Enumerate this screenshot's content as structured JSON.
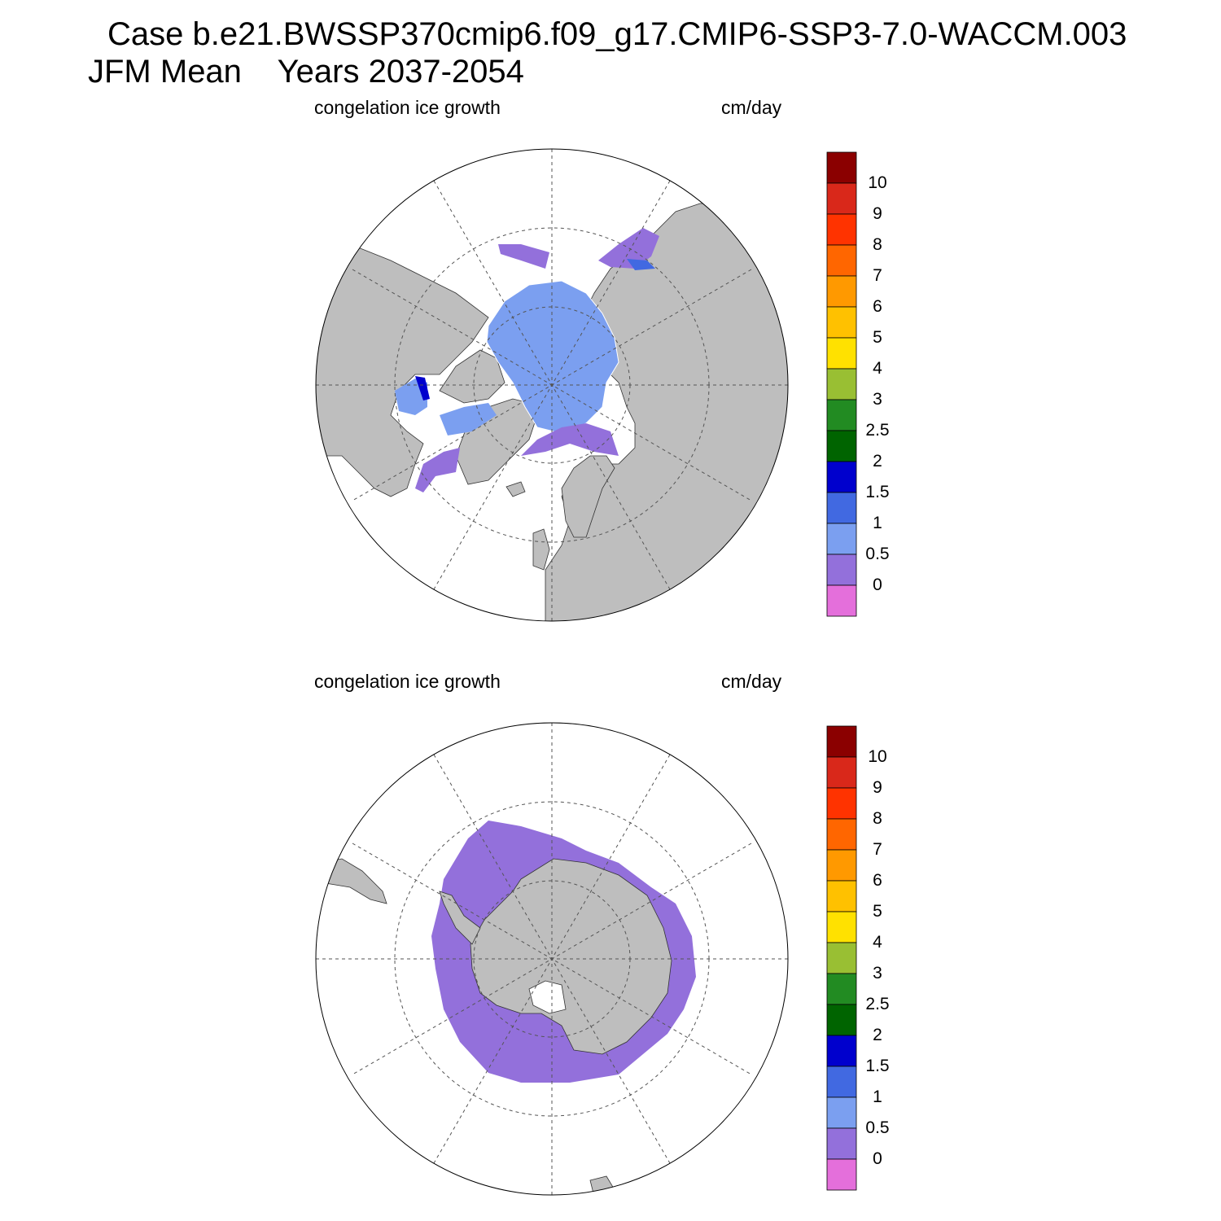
{
  "header": {
    "title_line1": "Case b.e21.BWSSP370cmip6.f09_g17.CMIP6-SSP3-7.0-WACCM.003",
    "title_line2": "JFM Mean    Years 2037-2054"
  },
  "panels": [
    {
      "variable": "congelation ice growth",
      "units": "cm/day",
      "hemisphere": "north"
    },
    {
      "variable": "congelation ice growth",
      "units": "cm/day",
      "hemisphere": "south"
    }
  ],
  "colorbar": {
    "labels": [
      "10",
      "9",
      "8",
      "7",
      "6",
      "5",
      "4",
      "3",
      "2.5",
      "2",
      "1.5",
      "1",
      "0.5",
      "0"
    ],
    "colors_top_to_bottom": [
      "#8b0000",
      "#d9281a",
      "#ff3300",
      "#ff6600",
      "#ff9900",
      "#ffc100",
      "#ffe100",
      "#99bf33",
      "#228b22",
      "#006400",
      "#0000cd",
      "#4169e1",
      "#7b9ff0",
      "#9370db",
      "#e46fdb"
    ]
  },
  "map_colors": {
    "land": "#bebebe",
    "ice_low": "#9370db",
    "ice_mid": "#7b9ff0",
    "ice_high": "#4169e1",
    "ice_peak": "#0000cd"
  }
}
